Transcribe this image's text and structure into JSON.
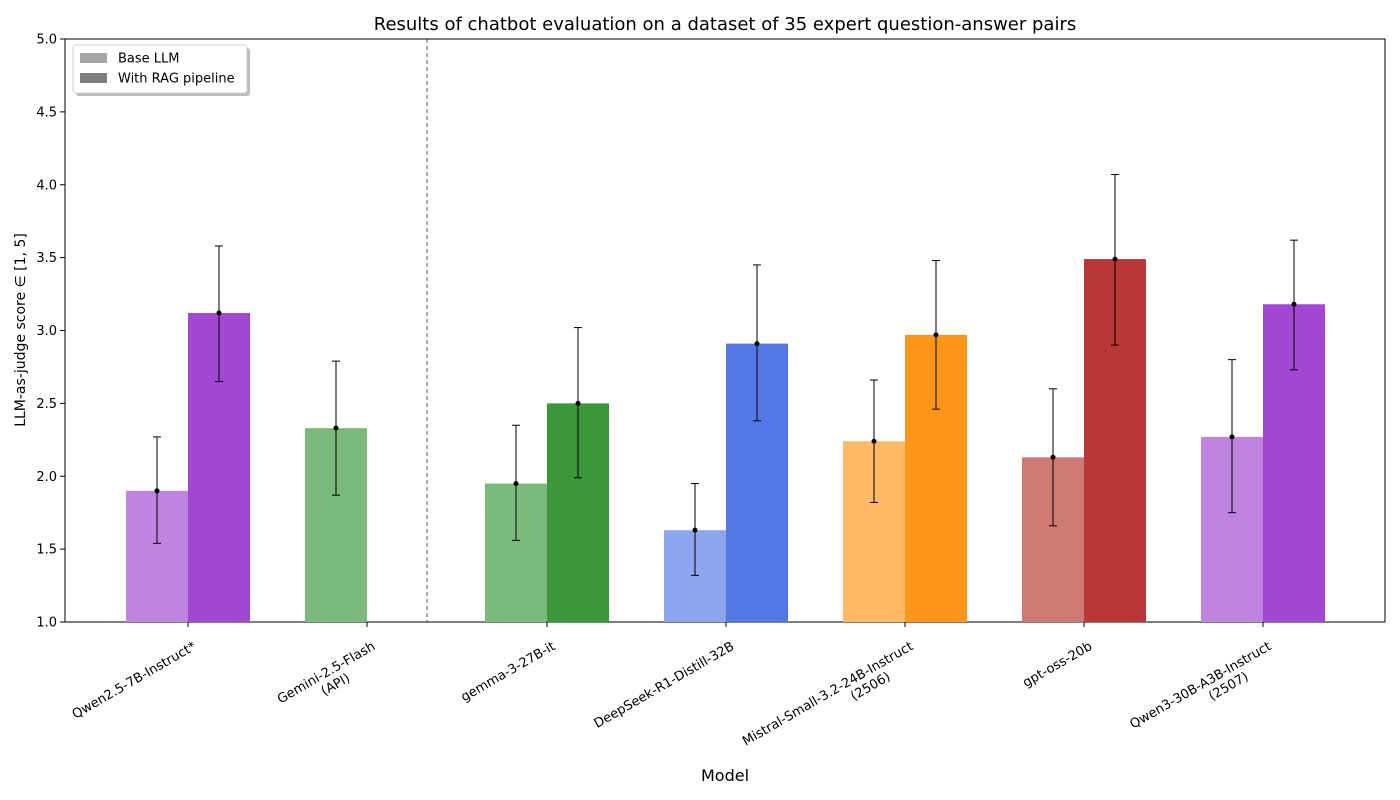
{
  "chart_data": {
    "type": "bar",
    "title": "Results of chatbot evaluation on a dataset of 35 expert question-answer pairs",
    "xlabel": "Model",
    "ylabel": "LLM-as-judge score ∈ [1, 5]",
    "ylim": [
      1.0,
      5.0
    ],
    "yticks": [
      "1.0",
      "1.5",
      "2.0",
      "2.5",
      "3.0",
      "3.5",
      "4.0",
      "4.5",
      "5.0"
    ],
    "legend": {
      "position": "top-left",
      "items": [
        {
          "label": "Base LLM",
          "color": "#a6a6a6"
        },
        {
          "label": "With RAG pipeline",
          "color": "#7f7f7f"
        }
      ]
    },
    "separator_after_index": 1,
    "models": [
      {
        "label": "Qwen2.5-7B-Instruct*",
        "base": {
          "value": 1.9,
          "err_low": 1.54,
          "err_high": 2.27,
          "color": "#bf84e2"
        },
        "rag": {
          "value": 3.12,
          "err_low": 2.65,
          "err_high": 3.58,
          "color": "#a147d4"
        }
      },
      {
        "label": "Gemini-2.5-Flash\n(API)",
        "base": {
          "value": 2.33,
          "err_low": 1.87,
          "err_high": 2.79,
          "color": "#7cba7b"
        },
        "rag": null
      },
      {
        "label": "gemma-3-27B-it",
        "base": {
          "value": 1.95,
          "err_low": 1.56,
          "err_high": 2.35,
          "color": "#7cba7b"
        },
        "rag": {
          "value": 2.5,
          "err_low": 1.99,
          "err_high": 3.02,
          "color": "#3a973a"
        }
      },
      {
        "label": "DeepSeek-R1-Distill-32B",
        "base": {
          "value": 1.63,
          "err_low": 1.32,
          "err_high": 1.95,
          "color": "#8da6ee"
        },
        "rag": {
          "value": 2.91,
          "err_low": 2.38,
          "err_high": 3.45,
          "color": "#5479e6"
        }
      },
      {
        "label": "Mistral-Small-3.2-24B-Instruct\n(2506)",
        "base": {
          "value": 2.24,
          "err_low": 1.82,
          "err_high": 2.66,
          "color": "#ffb967"
        },
        "rag": {
          "value": 2.97,
          "err_low": 2.46,
          "err_high": 3.48,
          "color": "#ff961c"
        }
      },
      {
        "label": "gpt-oss-20b",
        "base": {
          "value": 2.13,
          "err_low": 1.66,
          "err_high": 2.6,
          "color": "#d07a76"
        },
        "rag": {
          "value": 3.49,
          "err_low": 2.9,
          "err_high": 4.07,
          "color": "#b83837"
        }
      },
      {
        "label": "Qwen3-30B-A3B-Instruct\n(2507)",
        "base": {
          "value": 2.27,
          "err_low": 1.75,
          "err_high": 2.8,
          "color": "#bf84e2"
        },
        "rag": {
          "value": 3.18,
          "err_low": 2.73,
          "err_high": 3.62,
          "color": "#a147d4"
        }
      }
    ]
  }
}
